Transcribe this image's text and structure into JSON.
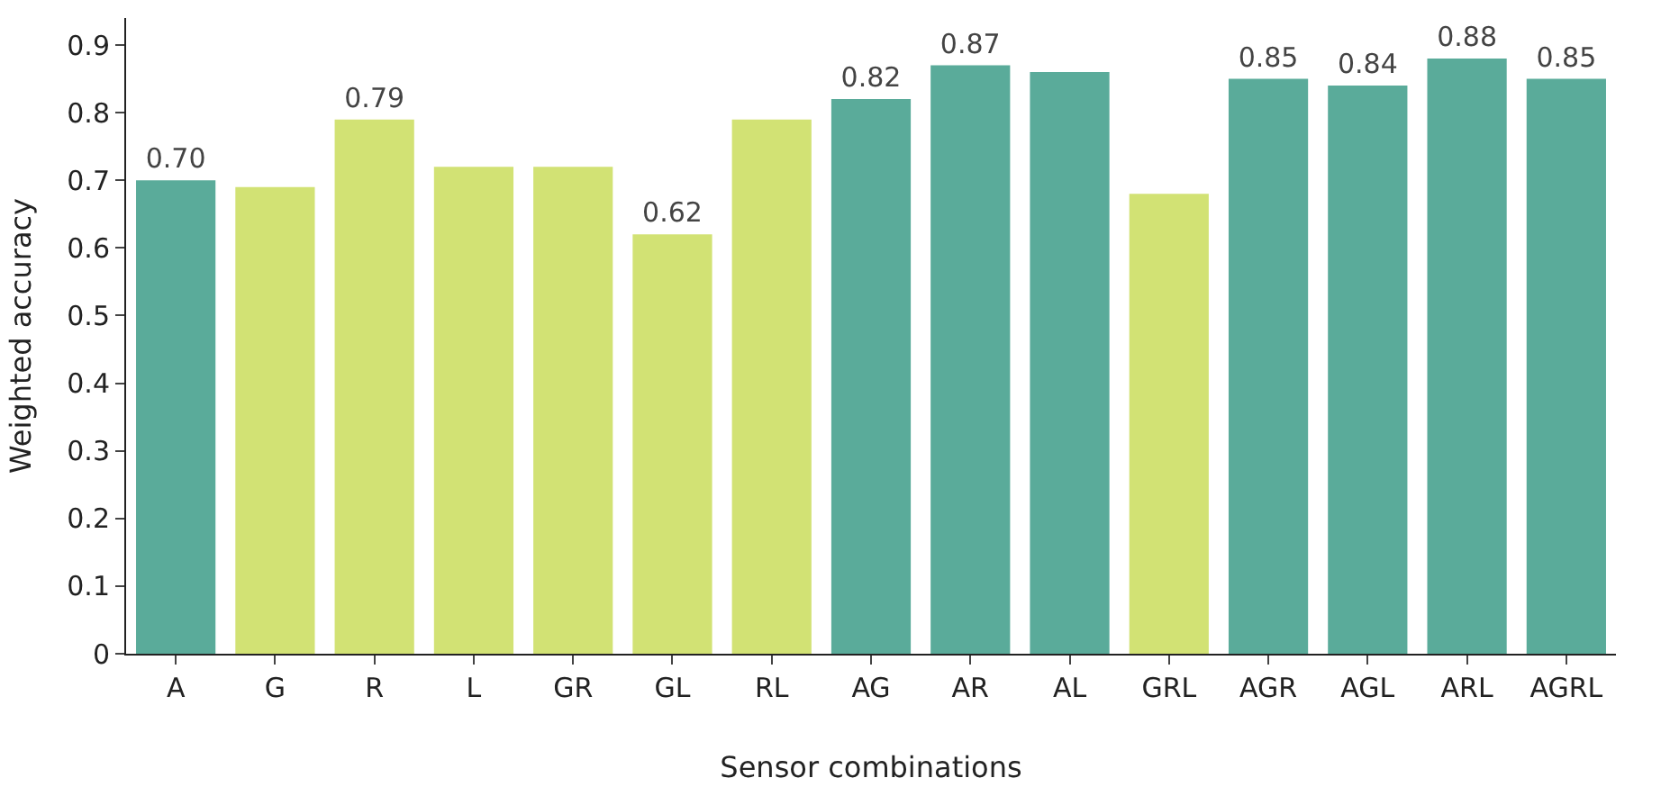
{
  "chart_data": {
    "type": "bar",
    "xlabel": "Sensor combinations",
    "ylabel": "Weighted accuracy",
    "categories": [
      "A",
      "G",
      "R",
      "L",
      "GR",
      "GL",
      "RL",
      "AG",
      "AR",
      "AL",
      "GRL",
      "AGR",
      "AGL",
      "ARL",
      "AGRL"
    ],
    "values": [
      0.7,
      0.69,
      0.79,
      0.72,
      0.72,
      0.62,
      0.79,
      0.82,
      0.87,
      0.86,
      0.68,
      0.85,
      0.84,
      0.88,
      0.85
    ],
    "colors": [
      "#5aab9a",
      "#d2e274",
      "#d2e274",
      "#d2e274",
      "#d2e274",
      "#d2e274",
      "#d2e274",
      "#5aab9a",
      "#5aab9a",
      "#5aab9a",
      "#d2e274",
      "#5aab9a",
      "#5aab9a",
      "#5aab9a",
      "#5aab9a"
    ],
    "value_labels": [
      "0.70",
      null,
      "0.79",
      null,
      null,
      "0.62",
      null,
      "0.82",
      "0.87",
      null,
      null,
      "0.85",
      "0.84",
      "0.88",
      "0.85"
    ],
    "ylim": [
      0,
      0.94
    ],
    "yticks": [
      {
        "value": 0,
        "label": "0"
      },
      0.1,
      0.2,
      0.3,
      0.4,
      0.5,
      0.6,
      0.7,
      0.8,
      0.9
    ],
    "grid": false,
    "legend": false
  }
}
